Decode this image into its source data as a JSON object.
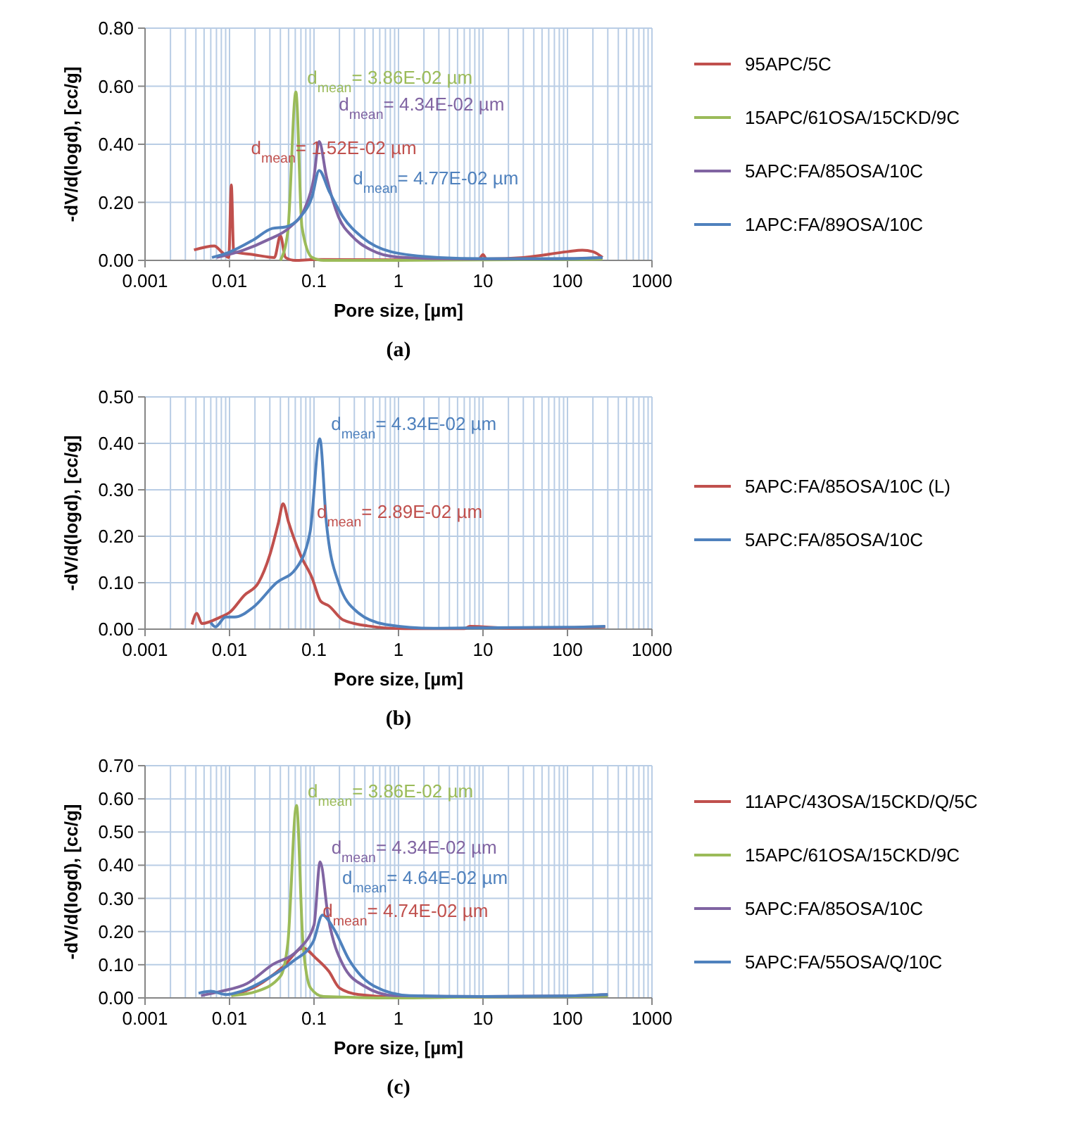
{
  "chart_data": [
    {
      "type": "line",
      "title": "(a)",
      "xlabel": "Pore size, [µm]",
      "ylabel": "-dV/d(logd), [cc/g]",
      "log": "x",
      "grid": true,
      "legend": "right",
      "xlim": [
        0.001,
        1000
      ],
      "xticks": [
        0.001,
        0.01,
        0.1,
        1,
        10,
        100,
        1000
      ],
      "ylim": [
        0,
        0.8
      ],
      "yticks": [
        {
          "value": 0,
          "label": "0.00"
        },
        {
          "value": 0.2,
          "label": "0.20"
        },
        {
          "value": 0.4,
          "label": "0.40"
        },
        {
          "value": 0.6,
          "label": "0.60"
        },
        {
          "value": 0.8,
          "label": "0.80"
        }
      ],
      "series": [
        {
          "name": "95APC/5C",
          "color": "#c0504d",
          "x": [
            0.0038,
            0.0066,
            0.008,
            0.0098,
            0.0105,
            0.0112,
            0.019,
            0.034,
            0.04,
            0.046,
            0.06,
            0.1,
            1,
            5,
            9,
            10,
            11,
            30,
            100,
            150,
            200,
            260
          ],
          "values": [
            0.036,
            0.05,
            0.03,
            0.01,
            0.26,
            0.03,
            0.02,
            0.01,
            0.085,
            0.01,
            0,
            0.003,
            0.002,
            0.005,
            0.005,
            0.02,
            0.005,
            0.01,
            0.03,
            0.035,
            0.03,
            0.01
          ]
        },
        {
          "name": "15APC/61OSA/15CKD/9C",
          "color": "#9bbb59",
          "x": [
            0.04,
            0.049,
            0.061,
            0.072,
            0.095,
            0.13,
            1,
            10,
            100,
            260
          ],
          "values": [
            0,
            0.1,
            0.58,
            0.115,
            0.01,
            0,
            0,
            0.002,
            0.003,
            0.005
          ]
        },
        {
          "name": "5APC:FA/85OSA/10C",
          "color": "#8064a2",
          "x": [
            0.007,
            0.0145,
            0.028,
            0.052,
            0.078,
            0.099,
            0.115,
            0.14,
            0.195,
            0.29,
            0.48,
            0.93,
            3,
            10,
            50,
            100,
            260
          ],
          "values": [
            0.01,
            0.035,
            0.07,
            0.115,
            0.18,
            0.28,
            0.41,
            0.29,
            0.15,
            0.08,
            0.035,
            0.012,
            0.006,
            0.005,
            0.005,
            0.006,
            0.01
          ]
        },
        {
          "name": "1APC:FA/89OSA/10C",
          "color": "#4f81bd",
          "x": [
            0.0062,
            0.0097,
            0.019,
            0.032,
            0.046,
            0.069,
            0.095,
            0.115,
            0.15,
            0.22,
            0.37,
            0.81,
            3,
            10,
            100,
            260
          ],
          "values": [
            0.01,
            0.027,
            0.07,
            0.11,
            0.115,
            0.15,
            0.22,
            0.31,
            0.24,
            0.15,
            0.08,
            0.03,
            0.01,
            0.006,
            0.006,
            0.01
          ]
        }
      ],
      "annotations": [
        {
          "text": "d$_{mean}$= 1.52E-02 µm",
          "x": 0.0105,
          "y": 0.26
        },
        {
          "text": "d$_{mean}$= 3.86E-02 µm",
          "x": 0.061,
          "y": 0.58
        },
        {
          "text": "d$_{mean}$= 4.34E-02 µm",
          "x": 0.115,
          "y": 0.41
        },
        {
          "text": "d$_{mean}$= 4.77E-02 µm",
          "x": 0.115,
          "y": 0.31
        }
      ]
    },
    {
      "type": "line",
      "title": "(b)",
      "xlabel": "Pore size, [µm]",
      "ylabel": "-dV/d(logd), [cc/g]",
      "log": "x",
      "grid": true,
      "legend": "right",
      "xlim": [
        0.001,
        1000
      ],
      "xticks": [
        0.001,
        0.01,
        0.1,
        1,
        10,
        100,
        1000
      ],
      "ylim": [
        0,
        0.5
      ],
      "yticks": [
        {
          "value": 0,
          "label": "0.00"
        },
        {
          "value": 0.1,
          "label": "0.10"
        },
        {
          "value": 0.2,
          "label": "0.20"
        },
        {
          "value": 0.3,
          "label": "0.30"
        },
        {
          "value": 0.4,
          "label": "0.40"
        },
        {
          "value": 0.5,
          "label": "0.50"
        }
      ],
      "series": [
        {
          "name": "5APC:FA/85OSA/10C (L)",
          "color": "#c0504d",
          "x": [
            0.0036,
            0.0041,
            0.0047,
            0.0078,
            0.01,
            0.015,
            0.022,
            0.03,
            0.038,
            0.043,
            0.05,
            0.069,
            0.095,
            0.12,
            0.15,
            0.22,
            0.43,
            1.2,
            6,
            7,
            20,
            100,
            280
          ],
          "values": [
            0.01,
            0.034,
            0.012,
            0.026,
            0.036,
            0.073,
            0.1,
            0.16,
            0.23,
            0.27,
            0.23,
            0.16,
            0.11,
            0.06,
            0.05,
            0.02,
            0.007,
            0.001,
            0.001,
            0.006,
            0.002,
            0.003,
            0.005
          ]
        },
        {
          "name": "5APC:FA/85OSA/10C",
          "color": "#4f81bd",
          "x": [
            0.006,
            0.0068,
            0.009,
            0.0115,
            0.019,
            0.036,
            0.061,
            0.09,
            0.117,
            0.14,
            0.195,
            0.33,
            0.71,
            2.6,
            10,
            100,
            280
          ],
          "values": [
            0.014,
            0.005,
            0.026,
            0.026,
            0.047,
            0.1,
            0.13,
            0.21,
            0.41,
            0.23,
            0.1,
            0.036,
            0.01,
            0.002,
            0.003,
            0.004,
            0.006
          ]
        }
      ],
      "annotations": [
        {
          "text": "d$_{mean}$= 2.89E-02 µm",
          "x": 0.043,
          "y": 0.27
        },
        {
          "text": "d$_{mean}$= 4.34E-02 µm",
          "x": 0.117,
          "y": 0.41
        }
      ]
    },
    {
      "type": "line",
      "title": "(c)",
      "xlabel": "Pore size, [µm]",
      "ylabel": "-dV/d(logd), [cc/g]",
      "log": "x",
      "grid": true,
      "legend": "right",
      "xlim": [
        0.001,
        1000
      ],
      "xticks": [
        0.001,
        0.01,
        0.1,
        1,
        10,
        100,
        1000
      ],
      "ylim": [
        0,
        0.7
      ],
      "yticks": [
        {
          "value": 0,
          "label": "0.00"
        },
        {
          "value": 0.1,
          "label": "0.10"
        },
        {
          "value": 0.2,
          "label": "0.20"
        },
        {
          "value": 0.3,
          "label": "0.30"
        },
        {
          "value": 0.4,
          "label": "0.40"
        },
        {
          "value": 0.5,
          "label": "0.50"
        },
        {
          "value": 0.6,
          "label": "0.60"
        },
        {
          "value": 0.7,
          "label": "0.70"
        }
      ],
      "series": [
        {
          "name": "11APC/43OSA/15CKD/Q/5C",
          "color": "#c0504d",
          "x": [
            0.0105,
            0.021,
            0.043,
            0.074,
            0.105,
            0.15,
            0.2,
            0.34,
            0.9,
            10
          ],
          "values": [
            0.007,
            0.036,
            0.094,
            0.15,
            0.12,
            0.08,
            0.03,
            0.01,
            0.003,
            0.003
          ]
        },
        {
          "name": "15APC/61OSA/15CKD/9C",
          "color": "#9bbb59",
          "x": [
            0.0105,
            0.021,
            0.04,
            0.049,
            0.062,
            0.074,
            0.091,
            0.13,
            1,
            10,
            100,
            300
          ],
          "values": [
            0.007,
            0.02,
            0.065,
            0.165,
            0.58,
            0.165,
            0.03,
            0.004,
            0,
            0.003,
            0.004,
            0.006
          ]
        },
        {
          "name": "5APC:FA/85OSA/10C",
          "color": "#8064a2",
          "x": [
            0.0046,
            0.0079,
            0.016,
            0.032,
            0.065,
            0.1,
            0.118,
            0.148,
            0.22,
            0.39,
            0.89,
            10,
            100,
            300
          ],
          "values": [
            0.007,
            0.02,
            0.043,
            0.1,
            0.145,
            0.22,
            0.41,
            0.24,
            0.1,
            0.036,
            0.007,
            0.004,
            0.006,
            0.01
          ]
        },
        {
          "name": "5APC:FA/55OSA/Q/10C",
          "color": "#4f81bd",
          "x": [
            0.0043,
            0.006,
            0.0091,
            0.0138,
            0.028,
            0.056,
            0.098,
            0.126,
            0.17,
            0.26,
            0.51,
            1.35,
            10,
            100,
            300
          ],
          "values": [
            0.014,
            0.02,
            0.01,
            0.02,
            0.058,
            0.11,
            0.17,
            0.25,
            0.21,
            0.115,
            0.036,
            0.007,
            0.004,
            0.006,
            0.01
          ]
        }
      ],
      "annotations": [
        {
          "text": "d$_{mean}$= 4.74E-02 µm",
          "x": 0.074,
          "y": 0.15
        },
        {
          "text": "d$_{mean}$= 3.86E-02 µm",
          "x": 0.062,
          "y": 0.58
        },
        {
          "text": "d$_{mean}$= 4.34E-02 µm",
          "x": 0.118,
          "y": 0.41
        },
        {
          "text": "d$_{mean}$= 4.64E-02 µm",
          "x": 0.126,
          "y": 0.25
        }
      ]
    }
  ]
}
